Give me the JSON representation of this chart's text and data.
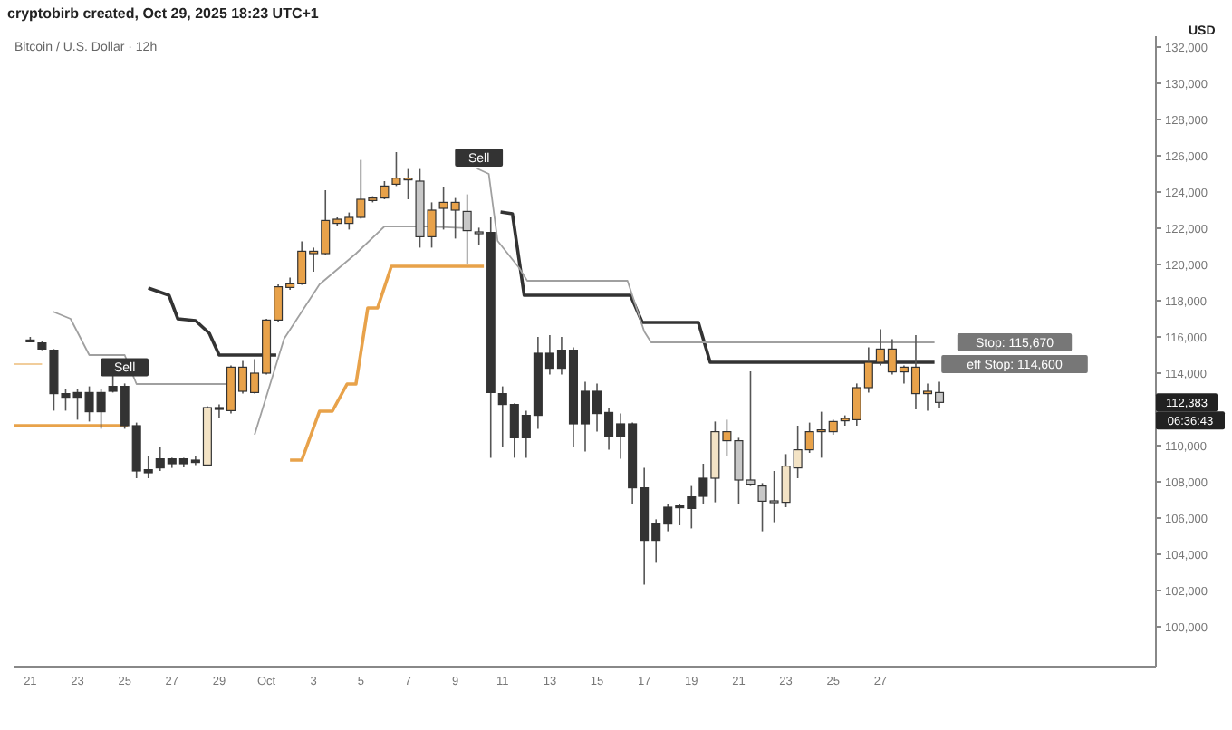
{
  "chart_data": {
    "type": "candlestick",
    "title": "Bitcoin / U.S. Dollar · 12h",
    "subtitle": "cryptobirb created, Oct 29, 2025 18:23 UTC+1",
    "ylabel": "USD",
    "x": [
      "2025-09-21T00:00",
      "2025-09-21T12:00",
      "2025-09-22T00:00",
      "2025-09-22T12:00",
      "2025-09-23T00:00",
      "2025-09-23T12:00",
      "2025-09-24T00:00",
      "2025-09-24T12:00",
      "2025-09-25T00:00",
      "2025-09-25T12:00",
      "2025-09-26T00:00",
      "2025-09-26T12:00",
      "2025-09-27T00:00",
      "2025-09-27T12:00",
      "2025-09-28T00:00",
      "2025-09-28T12:00",
      "2025-09-29T00:00",
      "2025-09-29T12:00",
      "2025-09-30T00:00",
      "2025-09-30T12:00",
      "2025-10-01T00:00",
      "2025-10-01T12:00",
      "2025-10-02T00:00",
      "2025-10-02T12:00",
      "2025-10-03T00:00",
      "2025-10-03T12:00",
      "2025-10-04T00:00",
      "2025-10-04T12:00",
      "2025-10-05T00:00",
      "2025-10-05T12:00",
      "2025-10-06T00:00",
      "2025-10-06T12:00",
      "2025-10-07T00:00",
      "2025-10-07T12:00",
      "2025-10-08T00:00",
      "2025-10-08T12:00",
      "2025-10-09T00:00",
      "2025-10-09T12:00",
      "2025-10-10T00:00",
      "2025-10-10T12:00",
      "2025-10-11T00:00",
      "2025-10-11T12:00",
      "2025-10-12T00:00",
      "2025-10-12T12:00",
      "2025-10-13T00:00",
      "2025-10-13T12:00",
      "2025-10-14T00:00",
      "2025-10-14T12:00",
      "2025-10-15T00:00",
      "2025-10-15T12:00",
      "2025-10-16T00:00",
      "2025-10-16T12:00",
      "2025-10-17T00:00",
      "2025-10-17T12:00",
      "2025-10-18T00:00",
      "2025-10-18T12:00",
      "2025-10-19T00:00",
      "2025-10-19T12:00",
      "2025-10-20T00:00",
      "2025-10-20T12:00",
      "2025-10-21T00:00",
      "2025-10-21T12:00",
      "2025-10-22T00:00",
      "2025-10-22T12:00",
      "2025-10-23T00:00",
      "2025-10-23T12:00",
      "2025-10-24T00:00",
      "2025-10-24T12:00",
      "2025-10-25T00:00",
      "2025-10-25T12:00",
      "2025-10-26T00:00",
      "2025-10-26T12:00",
      "2025-10-27T00:00",
      "2025-10-27T12:00",
      "2025-10-28T00:00",
      "2025-10-28T12:00",
      "2025-10-29T00:00",
      "2025-10-29T12:00"
    ],
    "ohlc": [
      [
        115830,
        116000,
        115700,
        115800
      ],
      [
        115670,
        115770,
        115270,
        115330
      ],
      [
        115270,
        115330,
        111930,
        112870
      ],
      [
        112870,
        113100,
        111930,
        112670
      ],
      [
        112930,
        113100,
        111430,
        112670
      ],
      [
        112930,
        113270,
        111330,
        111870
      ],
      [
        112930,
        113100,
        110930,
        111870
      ],
      [
        113270,
        113930,
        112930,
        113000
      ],
      [
        113270,
        113430,
        110930,
        111100
      ],
      [
        111100,
        111270,
        108200,
        108600
      ],
      [
        108670,
        109430,
        108200,
        108500
      ],
      [
        109270,
        109930,
        108600,
        108770
      ],
      [
        109270,
        109330,
        108770,
        109000
      ],
      [
        109270,
        109330,
        108800,
        109000
      ],
      [
        109200,
        109430,
        108930,
        109070
      ],
      [
        108930,
        112170,
        108870,
        112100
      ],
      [
        112100,
        112270,
        111530,
        112070
      ],
      [
        111930,
        114430,
        111770,
        114330
      ],
      [
        113000,
        114670,
        112870,
        114330
      ],
      [
        112930,
        114770,
        112870,
        114000
      ],
      [
        114000,
        117000,
        113930,
        116930
      ],
      [
        116930,
        118900,
        116800,
        118770
      ],
      [
        118730,
        119270,
        118600,
        118930
      ],
      [
        118930,
        121270,
        118870,
        120730
      ],
      [
        120600,
        120930,
        119600,
        120730
      ],
      [
        120600,
        124100,
        120530,
        122430
      ],
      [
        122270,
        122600,
        122100,
        122500
      ],
      [
        122270,
        122870,
        121930,
        122600
      ],
      [
        122600,
        125770,
        122530,
        123600
      ],
      [
        123530,
        123770,
        123430,
        123670
      ],
      [
        123670,
        124600,
        123600,
        124330
      ],
      [
        124430,
        126200,
        124330,
        124770
      ],
      [
        124670,
        125270,
        123600,
        124770
      ],
      [
        124600,
        125270,
        120930,
        121530
      ],
      [
        121530,
        123430,
        120930,
        123000
      ],
      [
        123100,
        124270,
        121930,
        123430
      ],
      [
        123000,
        123670,
        121430,
        123430
      ],
      [
        122930,
        123870,
        120000,
        121870
      ],
      [
        121800,
        122030,
        121100,
        121770
      ],
      [
        121770,
        122600,
        109330,
        112930
      ],
      [
        112870,
        113270,
        109930,
        112270
      ],
      [
        112270,
        112330,
        109330,
        110430
      ],
      [
        111670,
        111930,
        109330,
        110430
      ],
      [
        115100,
        116000,
        110930,
        111670
      ],
      [
        115100,
        116100,
        113930,
        114270
      ],
      [
        115270,
        116000,
        113930,
        114270
      ],
      [
        115270,
        115430,
        109930,
        111200
      ],
      [
        113000,
        113530,
        109670,
        111200
      ],
      [
        113000,
        113430,
        110770,
        111770
      ],
      [
        111830,
        112100,
        109770,
        110530
      ],
      [
        111200,
        111770,
        109270,
        110530
      ],
      [
        111200,
        111270,
        106770,
        107670
      ],
      [
        107670,
        108770,
        102330,
        104770
      ],
      [
        105670,
        105930,
        103530,
        104770
      ],
      [
        106600,
        106770,
        105270,
        105670
      ],
      [
        106670,
        106770,
        105600,
        106600
      ],
      [
        107170,
        107770,
        105430,
        106530
      ],
      [
        108200,
        109000,
        106770,
        107200
      ],
      [
        108200,
        111330,
        106870,
        110770
      ],
      [
        110270,
        111430,
        109430,
        110770
      ],
      [
        110270,
        110430,
        106770,
        108100
      ],
      [
        108100,
        114100,
        107770,
        107870
      ],
      [
        107770,
        107930,
        105270,
        106930
      ],
      [
        106950,
        108600,
        105770,
        106930
      ],
      [
        106870,
        109530,
        106600,
        108870
      ],
      [
        108770,
        111100,
        108200,
        109770
      ],
      [
        109770,
        111270,
        109600,
        110770
      ],
      [
        110770,
        111870,
        109330,
        110870
      ],
      [
        110770,
        111430,
        110600,
        111330
      ],
      [
        111370,
        111670,
        111100,
        111500
      ],
      [
        111430,
        113430,
        111100,
        113200
      ],
      [
        113200,
        115430,
        112930,
        114600
      ],
      [
        114600,
        116430,
        114430,
        115330
      ],
      [
        114070,
        115870,
        113930,
        115330
      ],
      [
        114070,
        114430,
        113430,
        114330
      ],
      [
        112870,
        116100,
        112000,
        114330
      ],
      [
        112870,
        113430,
        111930,
        113000
      ],
      [
        112930,
        113530,
        112100,
        112383
      ]
    ],
    "colors": [
      "#333333",
      "#333333",
      "#333333",
      "#333333",
      "#333333",
      "#333333",
      "#333333",
      "#333333",
      "#333333",
      "#333333",
      "#333333",
      "#333333",
      "#333333",
      "#333333",
      "#333333",
      "#f3e3c5",
      "#333333",
      "#e8a24a",
      "#e8a24a",
      "#e8a24a",
      "#e8a24a",
      "#e8a24a",
      "#e8a24a",
      "#e8a24a",
      "#e8a24a",
      "#e8a24a",
      "#e8a24a",
      "#e8a24a",
      "#e8a24a",
      "#e8a24a",
      "#e8a24a",
      "#e8a24a",
      "#e8a24a",
      "#c8c8c8",
      "#e8a24a",
      "#e8a24a",
      "#e8a24a",
      "#c8c8c8",
      "#c8c8c8",
      "#333333",
      "#333333",
      "#333333",
      "#333333",
      "#333333",
      "#333333",
      "#333333",
      "#333333",
      "#333333",
      "#333333",
      "#333333",
      "#333333",
      "#333333",
      "#333333",
      "#333333",
      "#333333",
      "#333333",
      "#333333",
      "#333333",
      "#f3e3c5",
      "#e8a24a",
      "#c8c8c8",
      "#c8c8c8",
      "#c8c8c8",
      "#c8c8c8",
      "#f3e3c5",
      "#f3e3c5",
      "#e8a24a",
      "#e8a24a",
      "#e8a24a",
      "#e8a24a",
      "#e8a24a",
      "#e8a24a",
      "#e8a24a",
      "#e8a24a",
      "#e8a24a",
      "#e8a24a",
      "#e8a24a",
      "#c8c8c8"
    ],
    "series": [
      {
        "type": "line",
        "color": "#333333",
        "x": [
          "2025-09-26T00:00",
          "2025-09-26T21:00",
          "2025-09-27T06:00",
          "2025-09-28T00:00",
          "2025-09-28T14:00",
          "2025-09-29T00:00",
          "2025-10-01T10:00",
          "2025-10-06T00:00",
          "2025-10-10T22:00",
          "2025-10-11T10:00",
          "2025-10-11T22:00",
          "2025-10-16T10:00",
          "2025-10-16T22:00",
          "2025-10-19T07:00",
          "2025-10-19T19:00",
          "2025-10-29T07:00"
        ],
        "values": [
          118700,
          118300,
          117000,
          116900,
          116200,
          115000,
          115000,
          null,
          122900,
          122800,
          118300,
          118300,
          116800,
          116800,
          114600,
          114600
        ]
      },
      {
        "type": "line",
        "color": "#a0a0a0",
        "x": [
          "2025-09-21T23:00",
          "2025-09-22T17:00",
          "2025-09-23T12:00",
          "2025-09-25T00:00",
          "2025-09-25T12:00",
          "2025-09-29T07:00",
          "2025-09-30T00:00",
          "2025-09-30T12:00",
          "2025-10-01T18:00",
          "2025-10-03T06:00",
          "2025-10-04T19:00",
          "2025-10-06T00:00",
          "2025-10-07T19:00",
          "2025-10-09T14:00",
          "2025-10-09T18:00",
          "2025-10-09T22:00",
          "2025-10-10T10:00",
          "2025-10-10T19:00",
          "2025-10-11T17:00",
          "2025-10-12T01:00",
          "2025-10-16T07:00",
          "2025-10-17T00:00",
          "2025-10-17T07:00",
          "2025-10-29T07:00"
        ],
        "values": [
          117400,
          117000,
          115000,
          115000,
          113400,
          113400,
          null,
          110600,
          115900,
          118900,
          120600,
          122100,
          122100,
          122000,
          null,
          125300,
          125000,
          121300,
          119800,
          119100,
          119100,
          116300,
          115700,
          115700
        ]
      },
      {
        "type": "line",
        "color": "#e8a24a",
        "x": [
          "2025-09-20T08:00",
          "2025-09-25T03:00",
          "2025-09-28T00:00",
          "2025-10-02T00:00",
          "2025-10-02T12:00",
          "2025-10-03T06:00",
          "2025-10-03T19:00",
          "2025-10-04T10:00",
          "2025-10-04T19:00",
          "2025-10-05T07:00",
          "2025-10-05T17:00",
          "2025-10-06T07:00",
          "2025-10-10T05:00"
        ],
        "values": [
          111100,
          111100,
          null,
          109200,
          109200,
          111900,
          111900,
          113400,
          113400,
          117600,
          117600,
          119900,
          119900
        ]
      },
      {
        "type": "line",
        "color": "#f0c890",
        "x": [
          "2025-09-20T08:00",
          "2025-09-21T12:00"
        ],
        "values": [
          114500,
          114500
        ]
      }
    ],
    "xlim": [
      "2025-09-20T08:00",
      "2025-11-07T16:00"
    ],
    "xticks": [
      {
        "value": "2025-09-21",
        "label": "21"
      },
      {
        "value": "2025-09-23",
        "label": "23"
      },
      {
        "value": "2025-09-25",
        "label": "25"
      },
      {
        "value": "2025-09-27",
        "label": "27"
      },
      {
        "value": "2025-09-29",
        "label": "29"
      },
      {
        "value": "2025-10-01",
        "label": "Oct"
      },
      {
        "value": "2025-10-03",
        "label": "3"
      },
      {
        "value": "2025-10-05",
        "label": "5"
      },
      {
        "value": "2025-10-07",
        "label": "7"
      },
      {
        "value": "2025-10-09",
        "label": "9"
      },
      {
        "value": "2025-10-11",
        "label": "11"
      },
      {
        "value": "2025-10-13",
        "label": "13"
      },
      {
        "value": "2025-10-15",
        "label": "15"
      },
      {
        "value": "2025-10-17",
        "label": "17"
      },
      {
        "value": "2025-10-19",
        "label": "19"
      },
      {
        "value": "2025-10-21",
        "label": "21"
      },
      {
        "value": "2025-10-23",
        "label": "23"
      },
      {
        "value": "2025-10-25",
        "label": "25"
      },
      {
        "value": "2025-10-27",
        "label": "27"
      }
    ],
    "ylim": [
      97800,
      132600
    ],
    "yticks": [
      {
        "value": 100000,
        "label": "100,000"
      },
      {
        "value": 102000,
        "label": "102,000"
      },
      {
        "value": 104000,
        "label": "104,000"
      },
      {
        "value": 106000,
        "label": "106,000"
      },
      {
        "value": 108000,
        "label": "108,000"
      },
      {
        "value": 110000,
        "label": "110,000"
      },
      {
        "value": 114000,
        "label": "114,000"
      },
      {
        "value": 116000,
        "label": "116,000"
      },
      {
        "value": 118000,
        "label": "118,000"
      },
      {
        "value": 120000,
        "label": "120,000"
      },
      {
        "value": 122000,
        "label": "122,000"
      },
      {
        "value": 124000,
        "label": "124,000"
      },
      {
        "value": 126000,
        "label": "126,000"
      },
      {
        "value": 128000,
        "label": "128,000"
      },
      {
        "value": 130000,
        "label": "130,000"
      },
      {
        "value": 132000,
        "label": "132,000"
      }
    ],
    "annotations": [
      {
        "text": "Sell",
        "x": "2025-09-25T00:00",
        "y": 113430
      },
      {
        "text": "Sell",
        "x": "2025-10-10T00:00",
        "y": 125000
      },
      "Stop: 115,670",
      "eff Stop: 114,600",
      "112,383",
      "06:36:43"
    ]
  }
}
